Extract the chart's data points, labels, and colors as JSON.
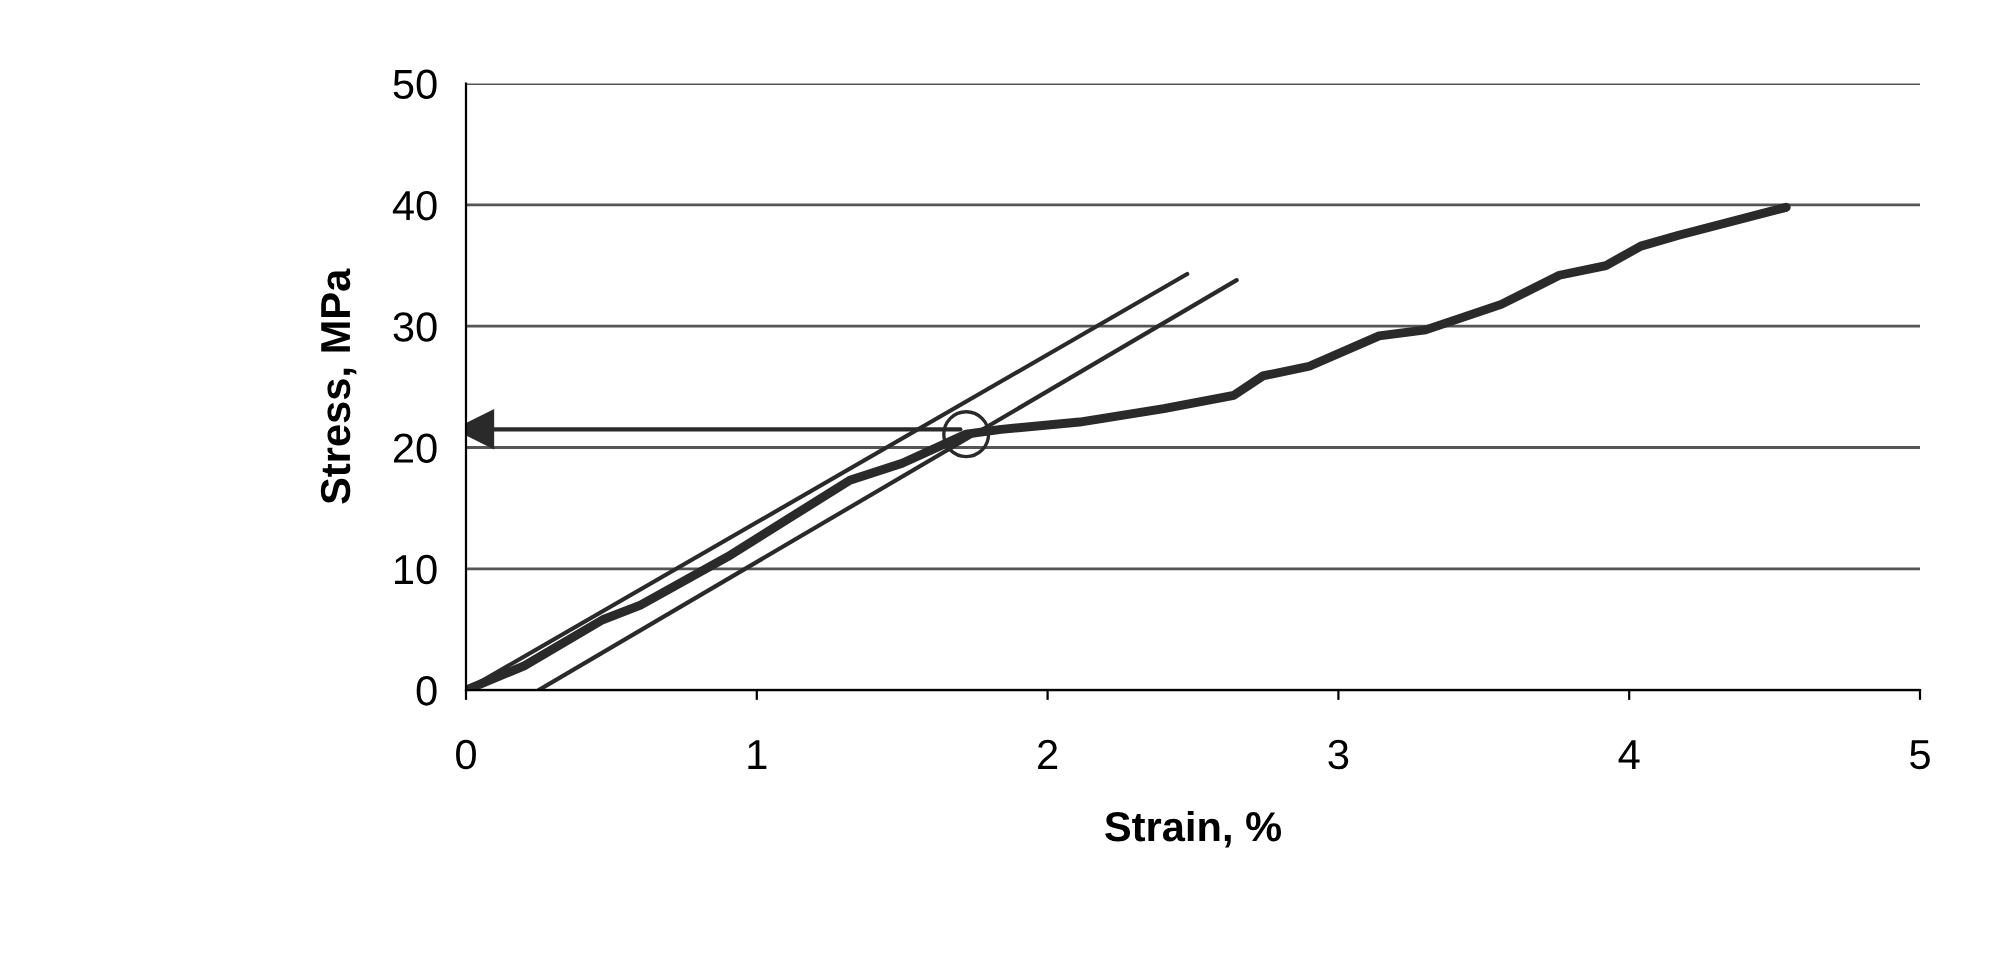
{
  "chart_data": {
    "type": "line",
    "xlabel": "Strain, %",
    "ylabel": "Stress, MPa",
    "xlim": [
      0,
      5
    ],
    "ylim": [
      0,
      50
    ],
    "xticks": [
      0,
      1,
      2,
      3,
      4,
      5
    ],
    "yticks": [
      0,
      10,
      20,
      30,
      40,
      50
    ],
    "grid": "y",
    "legend": false,
    "series": [
      {
        "color": "#2a2a2a",
        "x": [
          0,
          0.2,
          0.47,
          0.6,
          0.9,
          1.1,
          1.32,
          1.5,
          1.72,
          1.84,
          2.11,
          2.4,
          2.64,
          2.74,
          2.9,
          3.14,
          3.3,
          3.56,
          3.76,
          3.92,
          4.04,
          4.17,
          4.54
        ],
        "values": [
          0,
          2,
          5.8,
          7,
          11,
          14,
          17.3,
          18.7,
          21.1,
          21.5,
          22.1,
          23.2,
          24.3,
          25.9,
          26.7,
          29.2,
          29.7,
          31.8,
          34.2,
          35,
          36.6,
          37.5,
          39.8
        ]
      },
      {
        "color": "#2a2a2a",
        "x": [
          0,
          2.48
        ],
        "values": [
          0,
          34.3
        ]
      },
      {
        "color": "#2a2a2a",
        "x": [
          0.25,
          2.65
        ],
        "values": [
          0,
          33.8
        ]
      },
      {
        "color": "#2a2a2a",
        "marker": "triangle",
        "x": [
          1.7,
          0.03
        ],
        "values": [
          21.5,
          21.5
        ]
      },
      {
        "type": "scatter",
        "color": "#2a2a2a",
        "marker": "circle",
        "x": [
          1.72
        ],
        "values": [
          21.1
        ]
      }
    ]
  }
}
